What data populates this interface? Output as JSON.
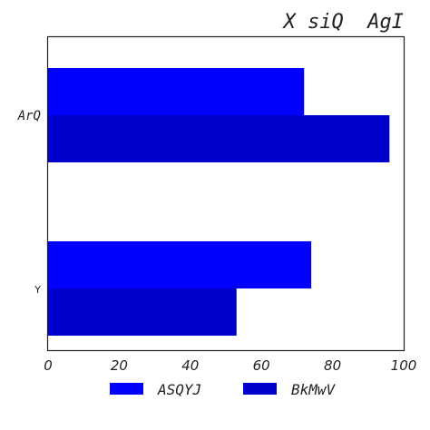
{
  "chart_data": {
    "type": "bar",
    "orientation": "horizontal",
    "title": "X siQ  AgI",
    "xlabel": "",
    "ylabel": "",
    "categories": [
      "ArQ",
      "Y"
    ],
    "series": [
      {
        "name": "ASQYJ",
        "values": [
          72,
          74
        ],
        "color": "#0000ff"
      },
      {
        "name": "BkMwV",
        "values": [
          96,
          53
        ],
        "color": "#0000cc"
      }
    ],
    "xlim": [
      0,
      100
    ],
    "xticks": [
      "0",
      "20",
      "40",
      "60",
      "80",
      "100"
    ],
    "grid": false,
    "legend_position": "bottom-center"
  }
}
